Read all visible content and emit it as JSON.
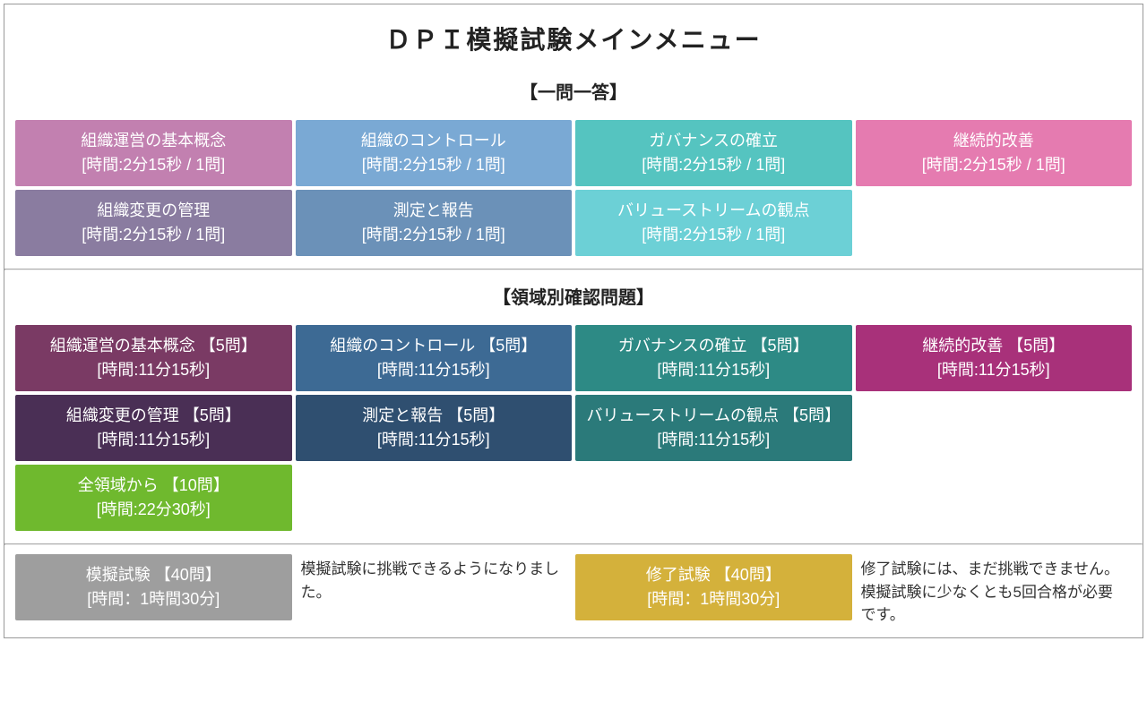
{
  "page_title": "ＤＰＩ模擬試験メインメニュー",
  "section1": {
    "header": "【一問一答】",
    "tiles": [
      {
        "title": "組織運営の基本概念",
        "sub": "[時間:2分15秒 / 1問]",
        "bg": "#c280b0"
      },
      {
        "title": "組織のコントロール",
        "sub": "[時間:2分15秒 / 1問]",
        "bg": "#7aa9d4"
      },
      {
        "title": "ガバナンスの確立",
        "sub": "[時間:2分15秒 / 1問]",
        "bg": "#55c4c0"
      },
      {
        "title": "継続的改善",
        "sub": "[時間:2分15秒 / 1問]",
        "bg": "#e57bb0"
      },
      {
        "title": "組織変更の管理",
        "sub": "[時間:2分15秒 / 1問]",
        "bg": "#8a7ca0"
      },
      {
        "title": "測定と報告",
        "sub": "[時間:2分15秒 / 1問]",
        "bg": "#6b91b8"
      },
      {
        "title": "バリューストリームの観点",
        "sub": "[時間:2分15秒 / 1問]",
        "bg": "#6cd0d6"
      }
    ]
  },
  "section2": {
    "header": "【領域別確認問題】",
    "tiles": [
      {
        "title": "組織運営の基本概念 【5問】",
        "sub": "[時間:11分15秒]",
        "bg": "#7a3a64"
      },
      {
        "title": "組織のコントロール 【5問】",
        "sub": "[時間:11分15秒]",
        "bg": "#3d6a94"
      },
      {
        "title": "ガバナンスの確立 【5問】",
        "sub": "[時間:11分15秒]",
        "bg": "#2d8a85"
      },
      {
        "title": "継続的改善 【5問】",
        "sub": "[時間:11分15秒]",
        "bg": "#a8317a"
      },
      {
        "title": "組織変更の管理 【5問】",
        "sub": "[時間:11分15秒]",
        "bg": "#4a2f55"
      },
      {
        "title": "測定と報告 【5問】",
        "sub": "[時間:11分15秒]",
        "bg": "#2f4f70"
      },
      {
        "title": "バリューストリームの観点 【5問】",
        "sub": "[時間:11分15秒]",
        "bg": "#2b7a7a"
      },
      {
        "title": "",
        "sub": "",
        "bg": "",
        "empty": true
      },
      {
        "title": "全領域から 【10問】",
        "sub": "[時間:22分30秒]",
        "bg": "#6fb92e"
      }
    ]
  },
  "bottom": {
    "mock": {
      "title": "模擬試験 【40問】",
      "sub": "[時間：1時間30分]",
      "bg": "#9e9e9e"
    },
    "mock_note": "模擬試験に挑戦できるようになりました。",
    "final": {
      "title": "修了試験 【40問】",
      "sub": "[時間：1時間30分]",
      "bg": "#d4b13b"
    },
    "final_note": "修了試験には、まだ挑戦できません。模擬試験に少なくとも5回合格が必要です。"
  }
}
